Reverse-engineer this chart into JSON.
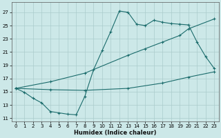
{
  "xlabel": "Humidex (Indice chaleur)",
  "background_color": "#cce8e8",
  "grid_color": "#aacccc",
  "line_color": "#1a6b6b",
  "xlim": [
    -0.5,
    23.5
  ],
  "ylim": [
    10.5,
    28.5
  ],
  "yticks": [
    11,
    13,
    15,
    17,
    19,
    21,
    23,
    25,
    27
  ],
  "xticks": [
    0,
    1,
    2,
    3,
    4,
    5,
    6,
    7,
    8,
    9,
    10,
    11,
    12,
    13,
    14,
    15,
    16,
    17,
    18,
    19,
    20,
    21,
    22,
    23
  ],
  "line_main_x": [
    0,
    1,
    2,
    3,
    4,
    5,
    6,
    7,
    8,
    9,
    10,
    11,
    12,
    13,
    14,
    15,
    16,
    17,
    18,
    19,
    20,
    21,
    22,
    23
  ],
  "line_main_y": [
    15.5,
    14.9,
    14.0,
    13.3,
    12.0,
    11.8,
    11.6,
    11.5,
    14.3,
    18.3,
    21.2,
    24.1,
    27.2,
    27.0,
    25.2,
    25.0,
    25.8,
    25.5,
    25.3,
    25.2,
    25.1,
    22.5,
    20.3,
    18.5
  ],
  "line_upper_x": [
    0,
    4,
    8,
    13,
    15,
    17,
    19,
    20,
    23
  ],
  "line_upper_y": [
    15.5,
    16.5,
    17.8,
    20.5,
    21.5,
    22.5,
    23.5,
    24.5,
    26.0
  ],
  "line_lower_x": [
    0,
    4,
    8,
    13,
    17,
    20,
    23
  ],
  "line_lower_y": [
    15.5,
    15.3,
    15.2,
    15.5,
    16.3,
    17.2,
    18.0
  ]
}
